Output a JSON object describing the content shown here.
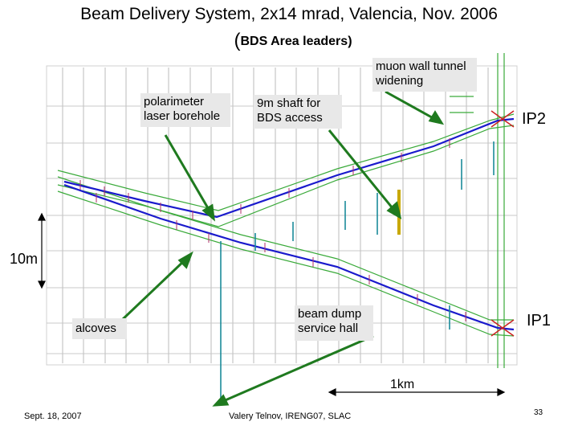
{
  "title_line1": "Beam Delivery System, 2x14 mrad, Valencia, Nov. 2006",
  "title_line2_paren": "(",
  "title_line2_bold": "BDS Area leaders",
  "title_line2_close": ")",
  "callouts": {
    "muon": "muon wall tunnel widening",
    "polarimeter": "polarimeter laser borehole",
    "shaft": "9m shaft for BDS access",
    "dump": "beam dump service hall",
    "alcoves": "alcoves"
  },
  "ip_labels": {
    "ip2": "IP2",
    "ip1": "IP1"
  },
  "scale": {
    "vertical": "10m",
    "horizontal": "1km"
  },
  "footer": {
    "date": "Sept. 18, 2007",
    "author": "Valery Telnov, IRENG07, SLAC",
    "page": "33"
  },
  "colors": {
    "arrow": "#1f7a1f",
    "beamline": "#1a1acc",
    "wall": "#3aaa3a",
    "grid": "#b8b8b8",
    "box": "#e8e8e8"
  }
}
